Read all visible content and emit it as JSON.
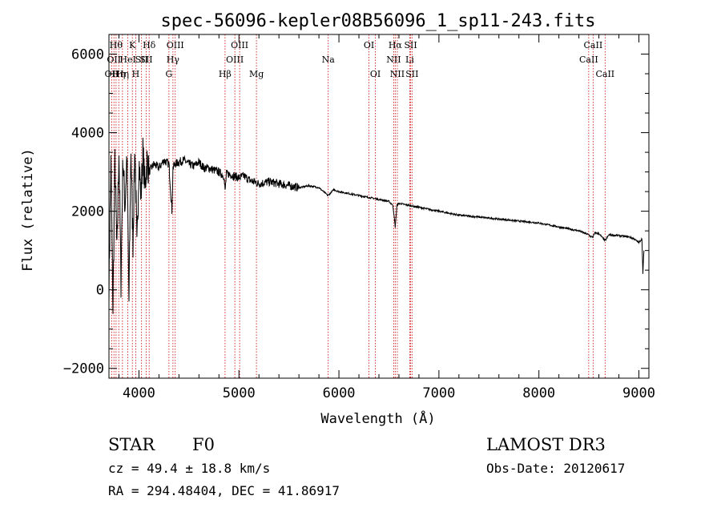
{
  "chart_data": {
    "type": "line",
    "title": "spec-56096-kepler08B56096_1_sp11-243.fits",
    "xlabel": "Wavelength (Å)",
    "ylabel": "Flux (relative)",
    "xlim": [
      3700,
      9100
    ],
    "ylim": [
      -2250,
      6500
    ],
    "xticks": [
      4000,
      5000,
      6000,
      7000,
      8000,
      9000
    ],
    "yticks": [
      -2000,
      0,
      2000,
      4000,
      6000
    ],
    "grid": false,
    "series": [
      {
        "name": "flux",
        "x": [
          3700,
          3720,
          3740,
          3760,
          3780,
          3800,
          3820,
          3840,
          3860,
          3880,
          3900,
          3920,
          3940,
          3960,
          3980,
          4000,
          4020,
          4040,
          4060,
          4080,
          4100,
          4150,
          4200,
          4250,
          4300,
          4330,
          4340,
          4360,
          4400,
          4450,
          4500,
          4550,
          4600,
          4650,
          4700,
          4750,
          4800,
          4850,
          4861,
          4875,
          4900,
          4950,
          5000,
          5050,
          5100,
          5150,
          5200,
          5300,
          5400,
          5500,
          5600,
          5700,
          5800,
          5890,
          5950,
          6000,
          6100,
          6200,
          6300,
          6400,
          6500,
          6540,
          6563,
          6580,
          6600,
          6700,
          6800,
          7000,
          7200,
          7400,
          7600,
          7800,
          8000,
          8200,
          8400,
          8498,
          8520,
          8542,
          8560,
          8600,
          8662,
          8700,
          8800,
          8900,
          8950,
          9000,
          9030,
          9040,
          9050
        ],
        "y": [
          100,
          3200,
          -500,
          3300,
          900,
          3600,
          200,
          3400,
          2100,
          3500,
          -300,
          3600,
          1200,
          3700,
          1000,
          3300,
          2400,
          3500,
          2600,
          3300,
          3000,
          3200,
          3100,
          3300,
          3200,
          2000,
          3100,
          3200,
          3250,
          3300,
          3200,
          3150,
          3250,
          3100,
          3100,
          3050,
          3000,
          2900,
          2500,
          2950,
          2950,
          2900,
          2850,
          2900,
          2800,
          2750,
          2700,
          2750,
          2700,
          2650,
          2600,
          2650,
          2600,
          2400,
          2550,
          2500,
          2450,
          2400,
          2350,
          2300,
          2250,
          2150,
          1600,
          2150,
          2200,
          2150,
          2100,
          2000,
          1900,
          1850,
          1800,
          1750,
          1700,
          1600,
          1500,
          1400,
          1350,
          1350,
          1450,
          1430,
          1250,
          1400,
          1380,
          1350,
          1300,
          1200,
          1300,
          400,
          1000
        ]
      }
    ],
    "line_labels": [
      {
        "wave": 3727,
        "label": "OII",
        "row": 2
      },
      {
        "wave": 3750,
        "label": "OII",
        "row": 1
      },
      {
        "wave": 3771,
        "label": "Hθ",
        "row": 0
      },
      {
        "wave": 3798,
        "label": "Hη",
        "row": 2
      },
      {
        "wave": 3835,
        "label": "Hη",
        "row": 2
      },
      {
        "wave": 3889,
        "label": "HeI",
        "row": 1
      },
      {
        "wave": 3934,
        "label": "K",
        "row": 0
      },
      {
        "wave": 3968,
        "label": "H",
        "row": 2
      },
      {
        "wave": 4026,
        "label": "SII",
        "row": 1
      },
      {
        "wave": 4072,
        "label": "SII",
        "row": 1
      },
      {
        "wave": 4102,
        "label": "Hδ",
        "row": 0
      },
      {
        "wave": 4300,
        "label": "G",
        "row": 2
      },
      {
        "wave": 4340,
        "label": "Hγ",
        "row": 1
      },
      {
        "wave": 4363,
        "label": "OIII",
        "row": 0
      },
      {
        "wave": 4861,
        "label": "Hβ",
        "row": 2
      },
      {
        "wave": 4959,
        "label": "OIII",
        "row": 1
      },
      {
        "wave": 5007,
        "label": "OIII",
        "row": 0
      },
      {
        "wave": 5175,
        "label": "Mg",
        "row": 2
      },
      {
        "wave": 5893,
        "label": "Na",
        "row": 1
      },
      {
        "wave": 6300,
        "label": "OI",
        "row": 0
      },
      {
        "wave": 6364,
        "label": "OI",
        "row": 2
      },
      {
        "wave": 6548,
        "label": "NII",
        "row": 1
      },
      {
        "wave": 6563,
        "label": "Hα",
        "row": 0
      },
      {
        "wave": 6584,
        "label": "NII",
        "row": 2
      },
      {
        "wave": 6708,
        "label": "Li",
        "row": 1
      },
      {
        "wave": 6717,
        "label": "SII",
        "row": 0
      },
      {
        "wave": 6731,
        "label": "SII",
        "row": 2
      },
      {
        "wave": 8498,
        "label": "CaII",
        "row": 1
      },
      {
        "wave": 8542,
        "label": "CaII",
        "row": 0
      },
      {
        "wave": 8662,
        "label": "CaII",
        "row": 2
      }
    ]
  },
  "info": {
    "object_class": "STAR",
    "subclass": "F0",
    "redshift": "cz = 49.4 ± 18.8 km/s",
    "coords": "RA = 294.48404, DEC =  41.86917",
    "survey": "LAMOST DR3",
    "obs_date": "Obs-Date: 20120617"
  },
  "colors": {
    "spectrum": "#000000",
    "line_marker": "#cc0000",
    "axis": "#000000"
  }
}
